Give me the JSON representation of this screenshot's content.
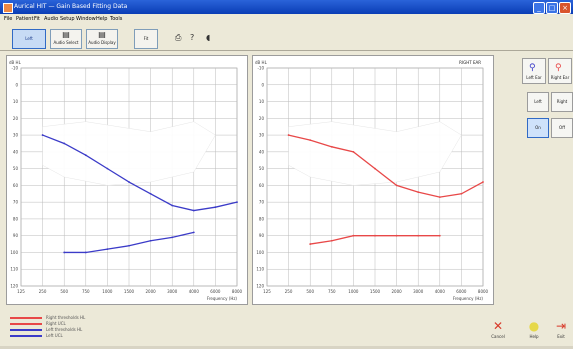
{
  "window": {
    "title": "Aurical HIT — Gain Based Fitting Data",
    "minimize_label": "_",
    "maximize_label": "□",
    "close_label": "×"
  },
  "menu": [
    "File",
    "Patient",
    "Fit",
    "Audio",
    "Setup",
    "Window",
    "Help",
    "Tools"
  ],
  "toolbar": {
    "buttons": [
      {
        "label": "Left"
      },
      {
        "label": "Audio Select"
      },
      {
        "label": "Audio Display"
      },
      {
        "label": "Fit"
      }
    ],
    "icons": [
      "print-icon",
      "help-icon",
      "speaker-icon"
    ]
  },
  "panels": {
    "left": {
      "unit": "dB HL",
      "xlabel": "Frequency (Hz)",
      "line_color": "#3b3bc8"
    },
    "right": {
      "unit": "dB HL",
      "header_value": "RIGHT EAR",
      "xlabel": "Frequency (Hz)",
      "line_color": "#e84848"
    }
  },
  "side_controls": {
    "top_buttons": [
      "Left Ear",
      "Right Ear"
    ],
    "row1": [
      "Left",
      "Right"
    ],
    "row2": [
      "On",
      "Off"
    ]
  },
  "legend": [
    {
      "color": "#e84848",
      "text": "Right thresholds HL"
    },
    {
      "color": "#e84848",
      "text": "Right UCL"
    },
    {
      "color": "#3b3bc8",
      "text": "Left thresholds HL"
    },
    {
      "color": "#3b3bc8",
      "text": "Left UCL"
    }
  ],
  "bottom_actions": [
    {
      "label": "Cancel",
      "icon": "close-icon",
      "color": "#d83a2a"
    },
    {
      "label": "Help",
      "icon": "lightbulb-icon",
      "color": "#e6d84a"
    },
    {
      "label": "Exit",
      "icon": "exit-icon",
      "color": "#d83a2a"
    }
  ],
  "chart_data": [
    {
      "type": "line",
      "x": [
        125,
        250,
        500,
        750,
        1000,
        1500,
        2000,
        3000,
        4000,
        6000,
        8000
      ],
      "series": [
        {
          "values": [
            null,
            30,
            35,
            42,
            50,
            58,
            65,
            72,
            75,
            73,
            70
          ]
        },
        {
          "values": [
            null,
            null,
            100,
            100,
            98,
            96,
            93,
            91,
            88,
            null,
            null
          ]
        }
      ],
      "ylim": [
        -10,
        120
      ],
      "grid": true
    },
    {
      "type": "line",
      "x": [
        125,
        250,
        500,
        750,
        1000,
        1500,
        2000,
        3000,
        4000,
        6000,
        8000
      ],
      "series": [
        {
          "values": [
            null,
            30,
            33,
            37,
            40,
            50,
            60,
            64,
            67,
            65,
            58
          ]
        },
        {
          "values": [
            null,
            null,
            95,
            93,
            90,
            90,
            90,
            90,
            90,
            null,
            null
          ]
        }
      ],
      "ylim": [
        -10,
        120
      ],
      "grid": true
    }
  ]
}
